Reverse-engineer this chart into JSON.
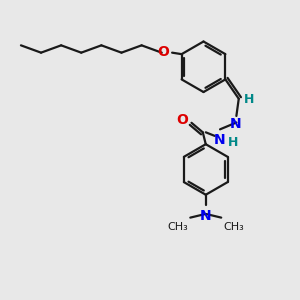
{
  "bg_color": "#e8e8e8",
  "bond_color": "#1a1a1a",
  "N_color": "#0000ee",
  "O_color": "#dd0000",
  "H_color": "#008888",
  "lw": 1.6,
  "lw_thin": 1.0,
  "fs": 9,
  "dpi": 100,
  "figsize": [
    3.0,
    3.0
  ],
  "xlim": [
    0,
    10
  ],
  "ylim": [
    0,
    10
  ]
}
